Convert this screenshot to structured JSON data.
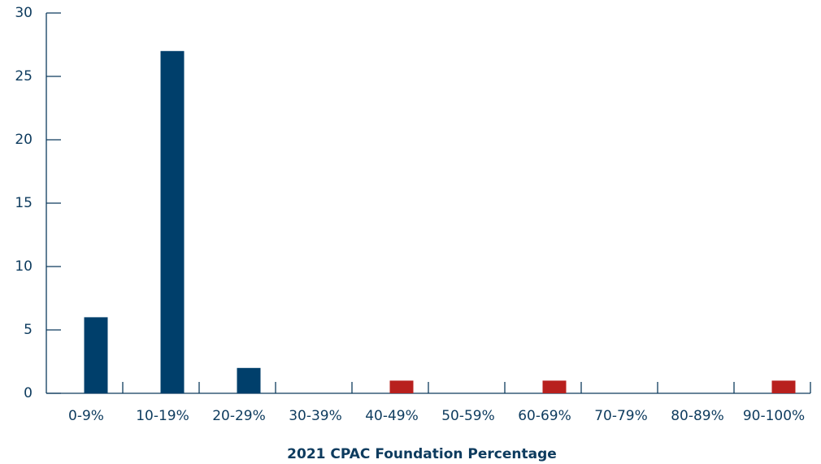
{
  "chart_data": {
    "type": "bar",
    "x_label": "2021 CPAC Foundation Percentage",
    "categories": [
      "0-9%",
      "10-19%",
      "20-29%",
      "30-39%",
      "40-49%",
      "50-59%",
      "60-69%",
      "70-79%",
      "80-89%",
      "90-100%"
    ],
    "values": [
      6,
      27,
      2,
      0,
      1,
      0,
      1,
      0,
      0,
      1
    ],
    "colors": [
      "#003f6b",
      "#003f6b",
      "#003f6b",
      "#003f6b",
      "#b8201e",
      "#003f6b",
      "#b8201e",
      "#003f6b",
      "#003f6b",
      "#b8201e"
    ],
    "ylim": [
      0,
      30
    ],
    "yticks": [
      0,
      5,
      10,
      15,
      20,
      25,
      30
    ],
    "grid": false
  }
}
